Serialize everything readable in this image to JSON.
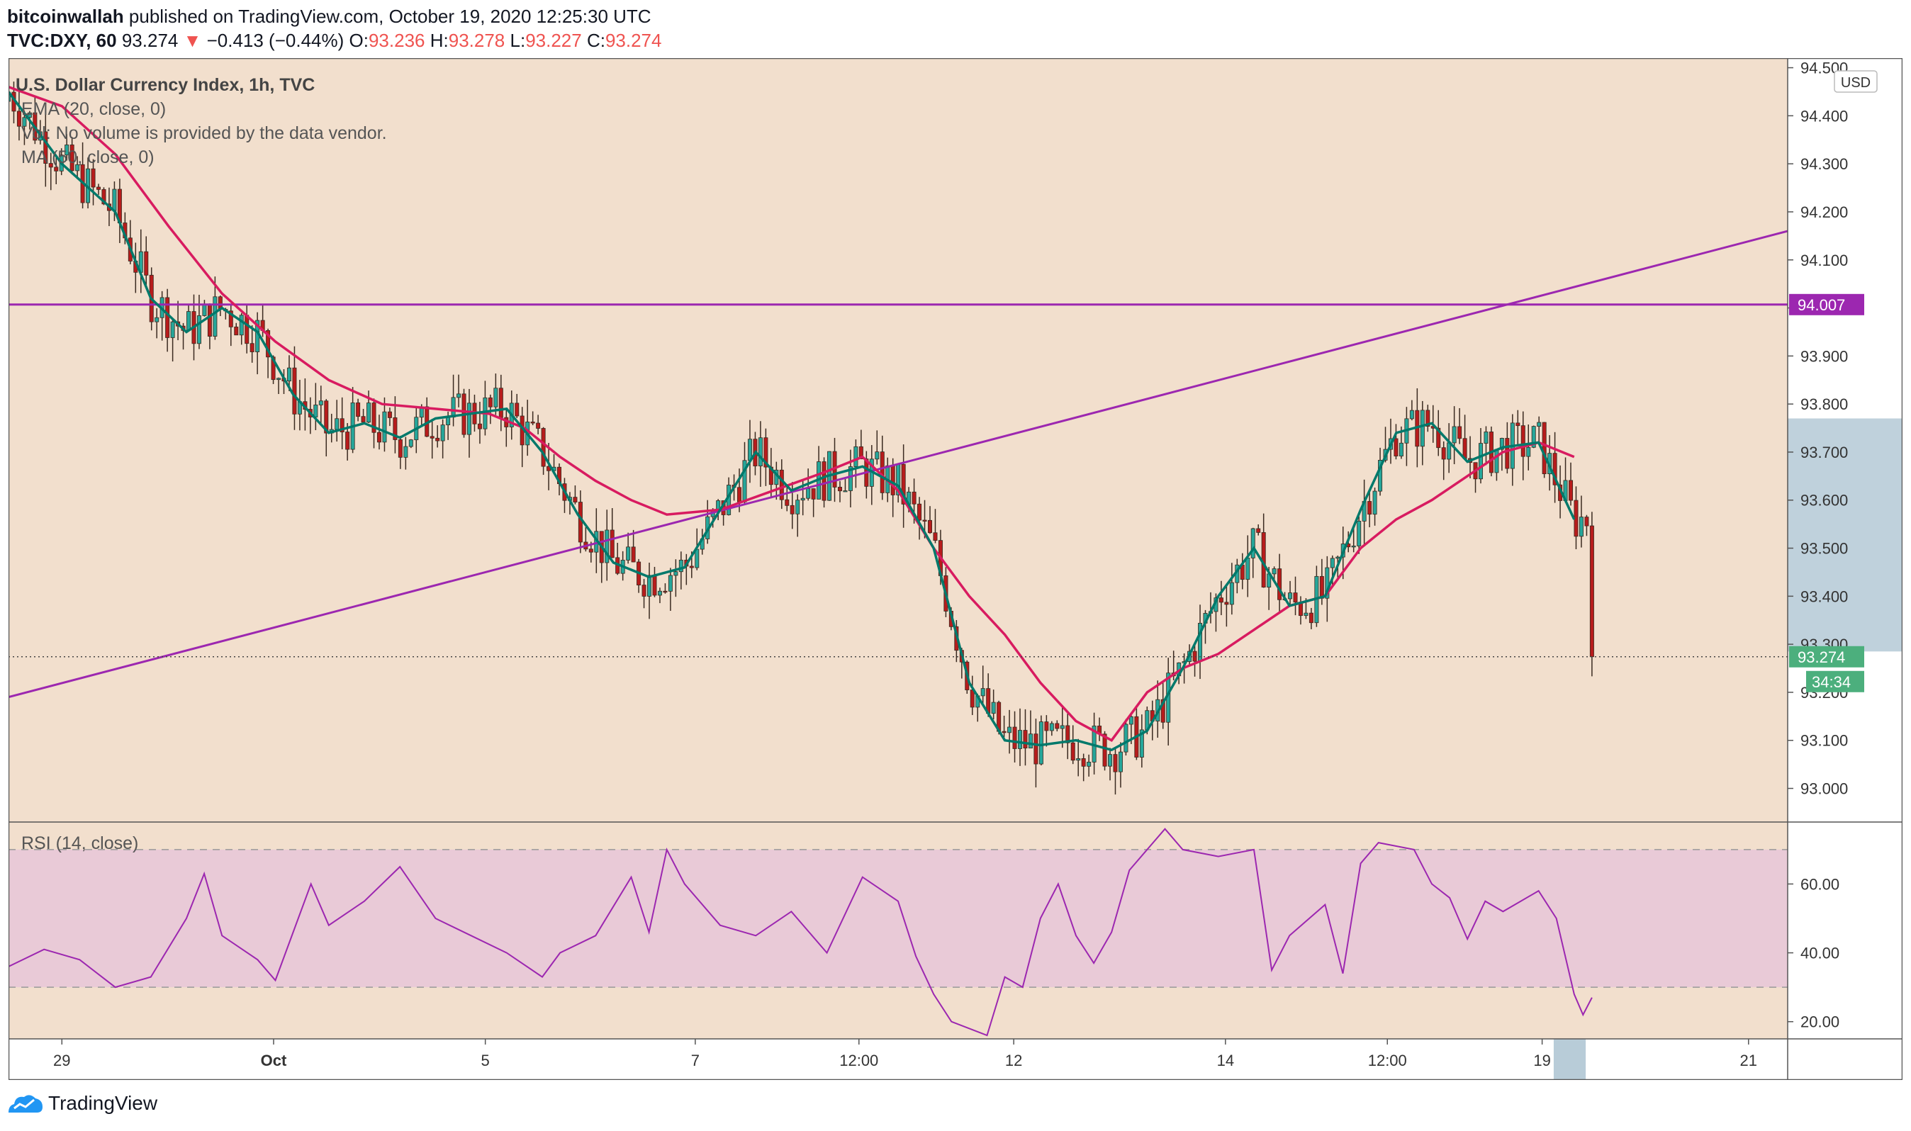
{
  "header": {
    "author": "bitcoinwallah",
    "published": "published on TradingView.com, October 19, 2020 12:25:30 UTC",
    "symbol": "TVC:DXY, 60",
    "last": "93.274",
    "change": "−0.413 (−0.44%)",
    "o_label": "O:",
    "o": "93.236",
    "h_label": "H:",
    "h": "93.278",
    "l_label": "L:",
    "l": "93.227",
    "c_label": "C:",
    "c": "93.274"
  },
  "legend": {
    "title": "U.S. Dollar Currency Index, 1h, TVC",
    "ema": "EMA (20, close, 0)",
    "vol": "Vol: No volume is provided by the data vendor.",
    "ma": "MA (50, close, 0)",
    "rsi": "RSI (14, close)"
  },
  "footer": {
    "brand": "TradingView"
  },
  "colors": {
    "background": "#f2dfcd",
    "up": "#26a69a",
    "down": "#b71c1c",
    "ema": "#00796b",
    "ma": "#d81b60",
    "purple": "#9c27b0",
    "rsi_band": "#e9cad7",
    "highlight": "#b8ccd8"
  },
  "chart_data": [
    {
      "type": "candlestick",
      "title": "U.S. Dollar Currency Index, 1h, TVC",
      "currency_label": "USD",
      "y_ticks": [
        "93.000",
        "93.100",
        "93.200",
        "93.300",
        "93.400",
        "93.500",
        "93.600",
        "93.700",
        "93.800",
        "93.900",
        "94.000",
        "94.100",
        "94.200",
        "94.300",
        "94.400",
        "94.500"
      ],
      "ylim": [
        92.93,
        94.52
      ],
      "x_ticks": [
        "29",
        "Oct",
        "5",
        "7",
        "12:00",
        "12",
        "14",
        "12:00",
        "19",
        "21"
      ],
      "horizontal_level": {
        "value": 94.007,
        "label": "94.007"
      },
      "last_price": {
        "value": 93.274,
        "label": "93.274",
        "countdown": "34:34"
      },
      "trendline": [
        {
          "x": 0,
          "y": 93.19
        },
        {
          "x": 1,
          "y": 94.16
        }
      ],
      "series": [
        {
          "name": "EMA (20, close, 0)",
          "kind": "line",
          "values": [
            [
              0,
              94.45
            ],
            [
              0.03,
              94.3
            ],
            [
              0.06,
              94.2
            ],
            [
              0.08,
              94.02
            ],
            [
              0.1,
              93.95
            ],
            [
              0.12,
              94.0
            ],
            [
              0.14,
              93.95
            ],
            [
              0.16,
              93.82
            ],
            [
              0.18,
              93.74
            ],
            [
              0.2,
              93.76
            ],
            [
              0.22,
              93.73
            ],
            [
              0.24,
              93.77
            ],
            [
              0.26,
              93.78
            ],
            [
              0.28,
              93.79
            ],
            [
              0.3,
              93.7
            ],
            [
              0.32,
              93.57
            ],
            [
              0.34,
              93.47
            ],
            [
              0.36,
              93.44
            ],
            [
              0.38,
              93.46
            ],
            [
              0.4,
              93.58
            ],
            [
              0.42,
              93.7
            ],
            [
              0.44,
              93.62
            ],
            [
              0.46,
              93.65
            ],
            [
              0.48,
              93.67
            ],
            [
              0.5,
              93.63
            ],
            [
              0.52,
              93.5
            ],
            [
              0.54,
              93.22
            ],
            [
              0.56,
              93.1
            ],
            [
              0.58,
              93.09
            ],
            [
              0.6,
              93.1
            ],
            [
              0.62,
              93.08
            ],
            [
              0.64,
              93.12
            ],
            [
              0.66,
              93.25
            ],
            [
              0.68,
              93.4
            ],
            [
              0.7,
              93.5
            ],
            [
              0.72,
              93.38
            ],
            [
              0.74,
              93.4
            ],
            [
              0.76,
              93.58
            ],
            [
              0.78,
              93.74
            ],
            [
              0.8,
              93.76
            ],
            [
              0.82,
              93.68
            ],
            [
              0.84,
              93.71
            ],
            [
              0.86,
              93.72
            ],
            [
              0.88,
              93.56
            ]
          ]
        },
        {
          "name": "MA (50, close, 0)",
          "kind": "line",
          "values": [
            [
              0,
              94.46
            ],
            [
              0.03,
              94.42
            ],
            [
              0.06,
              94.32
            ],
            [
              0.09,
              94.17
            ],
            [
              0.12,
              94.03
            ],
            [
              0.15,
              93.93
            ],
            [
              0.18,
              93.85
            ],
            [
              0.21,
              93.8
            ],
            [
              0.24,
              93.79
            ],
            [
              0.27,
              93.78
            ],
            [
              0.29,
              93.75
            ],
            [
              0.31,
              93.69
            ],
            [
              0.33,
              93.64
            ],
            [
              0.35,
              93.6
            ],
            [
              0.37,
              93.57
            ],
            [
              0.4,
              93.58
            ],
            [
              0.43,
              93.62
            ],
            [
              0.46,
              93.66
            ],
            [
              0.48,
              93.69
            ],
            [
              0.5,
              93.62
            ],
            [
              0.52,
              93.5
            ],
            [
              0.54,
              93.4
            ],
            [
              0.56,
              93.32
            ],
            [
              0.58,
              93.22
            ],
            [
              0.6,
              93.14
            ],
            [
              0.62,
              93.1
            ],
            [
              0.64,
              93.2
            ],
            [
              0.66,
              93.25
            ],
            [
              0.68,
              93.28
            ],
            [
              0.7,
              93.33
            ],
            [
              0.72,
              93.38
            ],
            [
              0.74,
              93.4
            ],
            [
              0.76,
              93.5
            ],
            [
              0.78,
              93.56
            ],
            [
              0.8,
              93.6
            ],
            [
              0.82,
              93.65
            ],
            [
              0.84,
              93.7
            ],
            [
              0.86,
              93.72
            ],
            [
              0.88,
              93.69
            ]
          ]
        }
      ]
    },
    {
      "type": "line",
      "title": "RSI (14, close)",
      "y_ticks": [
        "20.00",
        "40.00",
        "60.00"
      ],
      "ylim": [
        15,
        78
      ],
      "band": [
        30,
        70
      ],
      "series": [
        {
          "name": "RSI (14, close)",
          "values": [
            [
              0,
              36
            ],
            [
              0.02,
              41
            ],
            [
              0.04,
              38
            ],
            [
              0.06,
              30
            ],
            [
              0.08,
              33
            ],
            [
              0.1,
              50
            ],
            [
              0.11,
              63
            ],
            [
              0.12,
              45
            ],
            [
              0.14,
              38
            ],
            [
              0.15,
              32
            ],
            [
              0.17,
              60
            ],
            [
              0.18,
              48
            ],
            [
              0.2,
              55
            ],
            [
              0.22,
              65
            ],
            [
              0.24,
              50
            ],
            [
              0.26,
              45
            ],
            [
              0.28,
              40
            ],
            [
              0.3,
              33
            ],
            [
              0.31,
              40
            ],
            [
              0.33,
              45
            ],
            [
              0.35,
              62
            ],
            [
              0.36,
              46
            ],
            [
              0.37,
              70
            ],
            [
              0.38,
              60
            ],
            [
              0.4,
              48
            ],
            [
              0.42,
              45
            ],
            [
              0.44,
              52
            ],
            [
              0.46,
              40
            ],
            [
              0.48,
              62
            ],
            [
              0.5,
              55
            ],
            [
              0.51,
              39
            ],
            [
              0.52,
              28
            ],
            [
              0.53,
              20
            ],
            [
              0.55,
              16
            ],
            [
              0.56,
              33
            ],
            [
              0.57,
              30
            ],
            [
              0.58,
              50
            ],
            [
              0.59,
              60
            ],
            [
              0.6,
              45
            ],
            [
              0.61,
              37
            ],
            [
              0.62,
              46
            ],
            [
              0.63,
              64
            ],
            [
              0.65,
              76
            ],
            [
              0.66,
              70
            ],
            [
              0.68,
              68
            ],
            [
              0.7,
              70
            ],
            [
              0.71,
              35
            ],
            [
              0.72,
              45
            ],
            [
              0.74,
              54
            ],
            [
              0.75,
              34
            ],
            [
              0.76,
              66
            ],
            [
              0.77,
              72
            ],
            [
              0.79,
              70
            ],
            [
              0.8,
              60
            ],
            [
              0.81,
              56
            ],
            [
              0.82,
              44
            ],
            [
              0.83,
              55
            ],
            [
              0.84,
              52
            ],
            [
              0.86,
              58
            ],
            [
              0.87,
              50
            ],
            [
              0.88,
              28
            ],
            [
              0.885,
              22
            ],
            [
              0.89,
              27
            ]
          ]
        }
      ]
    }
  ]
}
